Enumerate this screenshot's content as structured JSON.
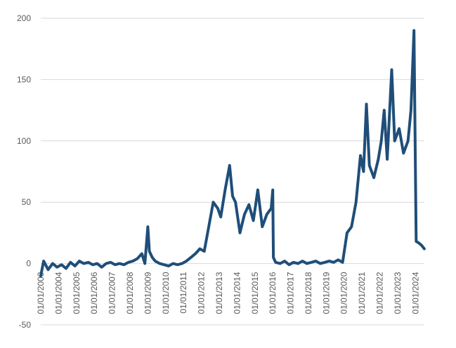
{
  "chart_data": {
    "type": "line",
    "title": "",
    "xlabel": "",
    "ylabel": "",
    "ylim": [
      -50,
      200
    ],
    "yticks": [
      -50,
      0,
      50,
      100,
      150,
      200
    ],
    "grid": "horizontal",
    "legend": "none",
    "x_tick_labels": [
      "01/01/2003",
      "01/01/2004",
      "01/01/2005",
      "01/01/2006",
      "01/01/2007",
      "01/01/2008",
      "01/01/2009",
      "01/01/2010",
      "01/01/2011",
      "01/01/2012",
      "01/01/2013",
      "01/01/2014",
      "01/01/2015",
      "01/01/2016",
      "01/01/2017",
      "01/01/2018",
      "01/01/2019",
      "01/01/2020",
      "01/01/2021",
      "01/01/2022",
      "01/01/2023",
      "01/01/2024"
    ],
    "series": [
      {
        "color": "#1f4e79",
        "points": [
          [
            "2003-01-01",
            -10
          ],
          [
            "2003-03-01",
            2
          ],
          [
            "2003-06-01",
            -5
          ],
          [
            "2003-09-01",
            0
          ],
          [
            "2003-12-01",
            -3
          ],
          [
            "2004-03-01",
            -1
          ],
          [
            "2004-06-01",
            -4
          ],
          [
            "2004-09-01",
            1
          ],
          [
            "2004-12-01",
            -2
          ],
          [
            "2005-03-01",
            2
          ],
          [
            "2005-06-01",
            0
          ],
          [
            "2005-09-01",
            1
          ],
          [
            "2005-12-01",
            -1
          ],
          [
            "2006-03-01",
            0
          ],
          [
            "2006-06-01",
            -3
          ],
          [
            "2006-09-01",
            0
          ],
          [
            "2006-12-01",
            1
          ],
          [
            "2007-03-01",
            -1
          ],
          [
            "2007-06-01",
            0
          ],
          [
            "2007-09-01",
            -1
          ],
          [
            "2007-12-01",
            1
          ],
          [
            "2008-03-01",
            2
          ],
          [
            "2008-06-01",
            4
          ],
          [
            "2008-09-01",
            8
          ],
          [
            "2008-11-01",
            0
          ],
          [
            "2009-01-01",
            30
          ],
          [
            "2009-02-01",
            10
          ],
          [
            "2009-04-01",
            5
          ],
          [
            "2009-06-01",
            2
          ],
          [
            "2009-09-01",
            0
          ],
          [
            "2009-12-01",
            -1
          ],
          [
            "2010-03-01",
            -2
          ],
          [
            "2010-06-01",
            0
          ],
          [
            "2010-09-01",
            -1
          ],
          [
            "2010-12-01",
            0
          ],
          [
            "2011-03-01",
            2
          ],
          [
            "2011-06-01",
            5
          ],
          [
            "2011-09-01",
            8
          ],
          [
            "2011-12-01",
            12
          ],
          [
            "2012-03-01",
            10
          ],
          [
            "2012-06-01",
            30
          ],
          [
            "2012-09-01",
            50
          ],
          [
            "2012-12-01",
            45
          ],
          [
            "2013-02-01",
            38
          ],
          [
            "2013-05-01",
            60
          ],
          [
            "2013-08-01",
            80
          ],
          [
            "2013-10-01",
            55
          ],
          [
            "2013-12-01",
            50
          ],
          [
            "2014-03-01",
            25
          ],
          [
            "2014-06-01",
            40
          ],
          [
            "2014-09-01",
            48
          ],
          [
            "2014-12-01",
            35
          ],
          [
            "2015-03-01",
            60
          ],
          [
            "2015-06-01",
            30
          ],
          [
            "2015-09-01",
            40
          ],
          [
            "2015-12-01",
            45
          ],
          [
            "2016-01-01",
            60
          ],
          [
            "2016-01-15",
            5
          ],
          [
            "2016-03-01",
            1
          ],
          [
            "2016-06-01",
            0
          ],
          [
            "2016-09-01",
            2
          ],
          [
            "2016-12-01",
            -1
          ],
          [
            "2017-03-01",
            1
          ],
          [
            "2017-06-01",
            0
          ],
          [
            "2017-09-01",
            2
          ],
          [
            "2017-12-01",
            0
          ],
          [
            "2018-03-01",
            1
          ],
          [
            "2018-06-01",
            2
          ],
          [
            "2018-09-01",
            0
          ],
          [
            "2018-12-01",
            1
          ],
          [
            "2019-03-01",
            2
          ],
          [
            "2019-06-01",
            1
          ],
          [
            "2019-09-01",
            3
          ],
          [
            "2019-12-01",
            1
          ],
          [
            "2020-03-01",
            25
          ],
          [
            "2020-06-01",
            30
          ],
          [
            "2020-09-01",
            50
          ],
          [
            "2020-12-01",
            88
          ],
          [
            "2021-02-01",
            75
          ],
          [
            "2021-04-01",
            130
          ],
          [
            "2021-06-01",
            80
          ],
          [
            "2021-09-01",
            70
          ],
          [
            "2021-12-01",
            85
          ],
          [
            "2022-02-01",
            100
          ],
          [
            "2022-04-01",
            125
          ],
          [
            "2022-06-01",
            85
          ],
          [
            "2022-09-01",
            158
          ],
          [
            "2022-11-01",
            100
          ],
          [
            "2023-02-01",
            110
          ],
          [
            "2023-05-01",
            90
          ],
          [
            "2023-08-01",
            100
          ],
          [
            "2023-10-01",
            125
          ],
          [
            "2023-12-01",
            190
          ],
          [
            "2024-01-15",
            18
          ],
          [
            "2024-03-01",
            17
          ],
          [
            "2024-05-01",
            15
          ],
          [
            "2024-06-30",
            12
          ]
        ]
      }
    ]
  }
}
